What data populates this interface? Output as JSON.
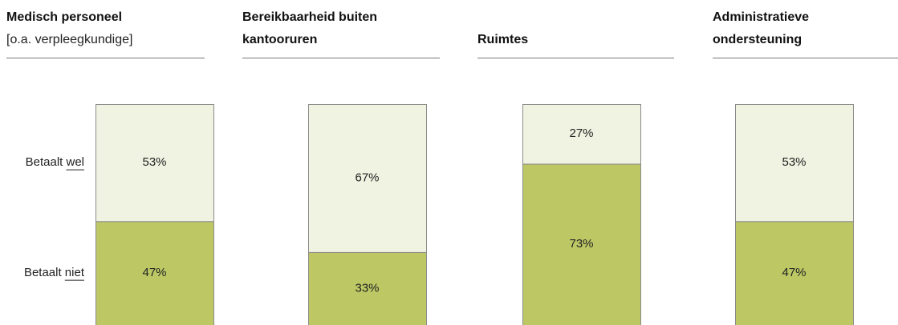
{
  "chart_data": [
    {
      "type": "bar",
      "title": [
        "Medisch personeel"
      ],
      "subtitle": "[o.a. verpleegkundige]",
      "ylim": [
        0,
        100
      ],
      "series": [
        {
          "name": "Betaalt niet",
          "color": "#bdc865",
          "values": [
            47
          ],
          "value_labels": [
            "47%"
          ]
        },
        {
          "name": "Betaalt wel",
          "color": "#f1f3e2",
          "values": [
            53
          ],
          "value_labels": [
            "53%"
          ]
        }
      ]
    },
    {
      "type": "bar",
      "title": [
        "Bereikbaarheid buiten",
        "kantooruren"
      ],
      "ylim": [
        0,
        100
      ],
      "series": [
        {
          "color": "#bdc865",
          "values": [
            33
          ],
          "value_labels": [
            "33%"
          ]
        },
        {
          "color": "#f1f3e2",
          "values": [
            67
          ],
          "value_labels": [
            "67%"
          ]
        }
      ]
    },
    {
      "type": "bar",
      "title": [
        "Ruimtes"
      ],
      "ylim": [
        0,
        100
      ],
      "series": [
        {
          "color": "#bdc865",
          "values": [
            73
          ],
          "value_labels": [
            "73%"
          ]
        },
        {
          "color": "#f1f3e2",
          "values": [
            27
          ],
          "value_labels": [
            "27%"
          ]
        }
      ]
    },
    {
      "type": "bar",
      "title": [
        "Administratieve",
        "ondersteuning"
      ],
      "ylim": [
        0,
        100
      ],
      "series": [
        {
          "color": "#bdc865",
          "values": [
            47
          ],
          "value_labels": [
            "47%"
          ]
        },
        {
          "color": "#f1f3e2",
          "values": [
            53
          ],
          "value_labels": [
            "53%"
          ]
        }
      ]
    }
  ]
}
